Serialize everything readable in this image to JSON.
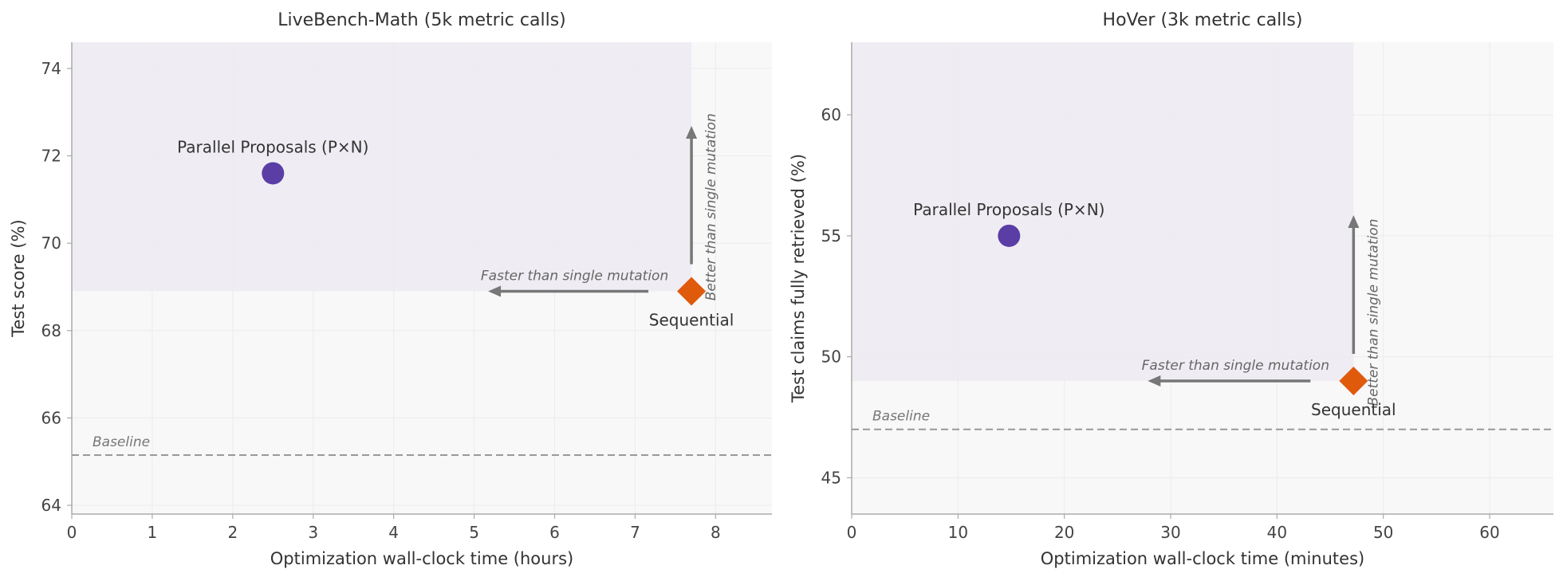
{
  "colors": {
    "background": "#ffffff",
    "plot_bg": "#f8f8f9",
    "better_region": "#efedf3",
    "parallel": "#5b3da6",
    "sequential": "#e05a0c",
    "baseline": "#999999",
    "arrow": "#777777",
    "text": "#333333",
    "axis": "#aaaaaa",
    "tick_text": "#444444",
    "note_text": "#666666"
  },
  "chart_data": [
    {
      "type": "scatter",
      "title": "LiveBench-Math (5k metric calls)",
      "xlabel": "Optimization wall-clock time (hours)",
      "ylabel": "Test score (%)",
      "xlim": [
        0,
        8.7
      ],
      "ylim": [
        63.8,
        74.6
      ],
      "xticks": [
        "0",
        "1",
        "2",
        "3",
        "4",
        "5",
        "6",
        "7",
        "8"
      ],
      "yticks": [
        "64",
        "66",
        "68",
        "70",
        "72",
        "74"
      ],
      "grid": true,
      "points": [
        {
          "name": "Parallel Proposals (P×N)",
          "x": 2.5,
          "y": 71.6,
          "marker": "circle"
        },
        {
          "name": "Sequential",
          "x": 7.7,
          "y": 68.9,
          "marker": "diamond"
        }
      ],
      "baseline": {
        "label": "Baseline",
        "y": 65.15
      },
      "annotations": {
        "faster": "Faster than single mutation",
        "better": "Better than single mutation"
      }
    },
    {
      "type": "scatter",
      "title": "HoVer (3k metric calls)",
      "xlabel": "Optimization wall-clock time (minutes)",
      "ylabel": "Test claims fully retrieved (%)",
      "xlim": [
        0,
        66
      ],
      "ylim": [
        43.5,
        63
      ],
      "xticks": [
        "0",
        "10",
        "20",
        "30",
        "40",
        "50",
        "60"
      ],
      "yticks": [
        "45",
        "50",
        "55",
        "60"
      ],
      "grid": true,
      "points": [
        {
          "name": "Parallel Proposals (P×N)",
          "x": 14.8,
          "y": 55.0,
          "marker": "circle"
        },
        {
          "name": "Sequential",
          "x": 47.2,
          "y": 49.0,
          "marker": "diamond"
        }
      ],
      "baseline": {
        "label": "Baseline",
        "y": 47.0
      },
      "annotations": {
        "faster": "Faster than single mutation",
        "better": "Better than single mutation"
      }
    }
  ]
}
